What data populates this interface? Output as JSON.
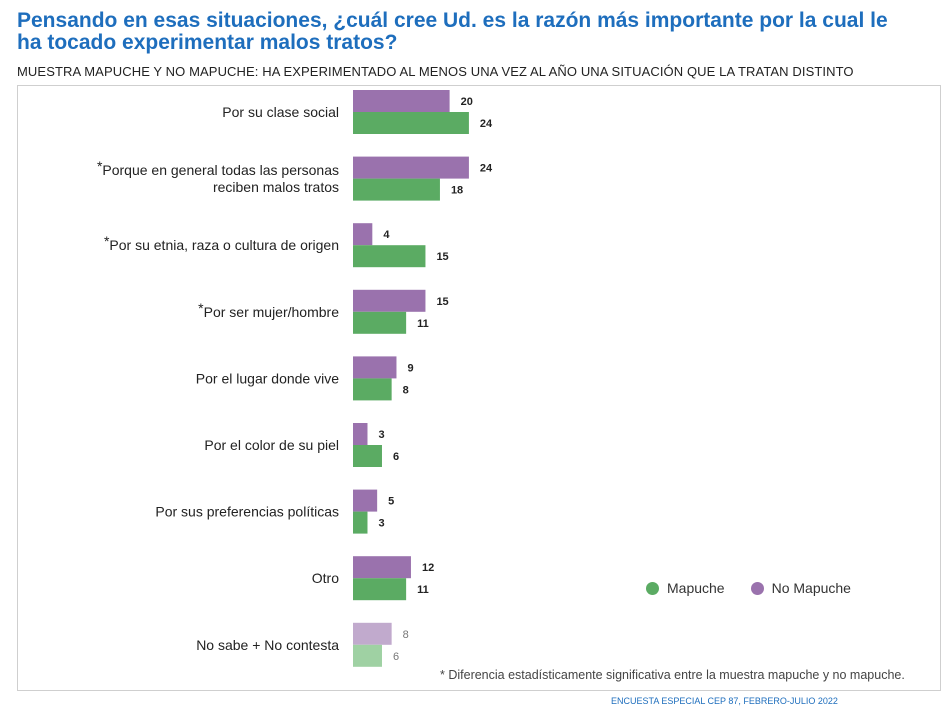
{
  "title": "Pensando en esas situaciones, ¿cuál cree Ud. es la razón más importante por la cual le ha tocado experimentar malos tratos?",
  "subtitle": "MUESTRA MAPUCHE Y NO MAPUCHE: HA EXPERIMENTADO AL MENOS UNA VEZ AL AÑO UNA SITUACIÓN QUE LA TRATAN DISTINTO",
  "footnote": "* Diferencia estadísticamente significativa entre la muestra mapuche y no mapuche.",
  "source": "ENCUESTA ESPECIAL CEP 87, FEBRERO-JULIO 2022",
  "legend": [
    {
      "label": "Mapuche",
      "color": "#5bab63"
    },
    {
      "label": "No Mapuche",
      "color": "#9a72ad"
    }
  ],
  "chart_data": {
    "type": "bar",
    "orientation": "horizontal",
    "categories": [
      {
        "label": [
          "Por su clase social"
        ],
        "significant": false
      },
      {
        "label": [
          "Porque en general todas las personas",
          "reciben malos tratos"
        ],
        "significant": true
      },
      {
        "label": [
          "Por su etnia, raza o cultura de origen"
        ],
        "significant": true
      },
      {
        "label": [
          "Por ser mujer/hombre"
        ],
        "significant": true
      },
      {
        "label": [
          "Por el lugar donde vive"
        ],
        "significant": false
      },
      {
        "label": [
          "Por el color de su piel"
        ],
        "significant": false
      },
      {
        "label": [
          "Por sus preferencias políticas"
        ],
        "significant": false
      },
      {
        "label": [
          "Otro"
        ],
        "significant": false
      },
      {
        "label": [
          "No sabe + No contesta"
        ],
        "significant": false,
        "muted": true
      }
    ],
    "series": [
      {
        "name": "No Mapuche",
        "color": "#9a72ad",
        "muted_color": "#c1aacd",
        "values": [
          20,
          24,
          4,
          15,
          9,
          3,
          5,
          12,
          8
        ]
      },
      {
        "name": "Mapuche",
        "color": "#5bab63",
        "muted_color": "#9fd1a3",
        "values": [
          24,
          18,
          15,
          11,
          8,
          6,
          3,
          11,
          6
        ]
      }
    ],
    "legend_position": "bottom-right",
    "grid": false
  }
}
